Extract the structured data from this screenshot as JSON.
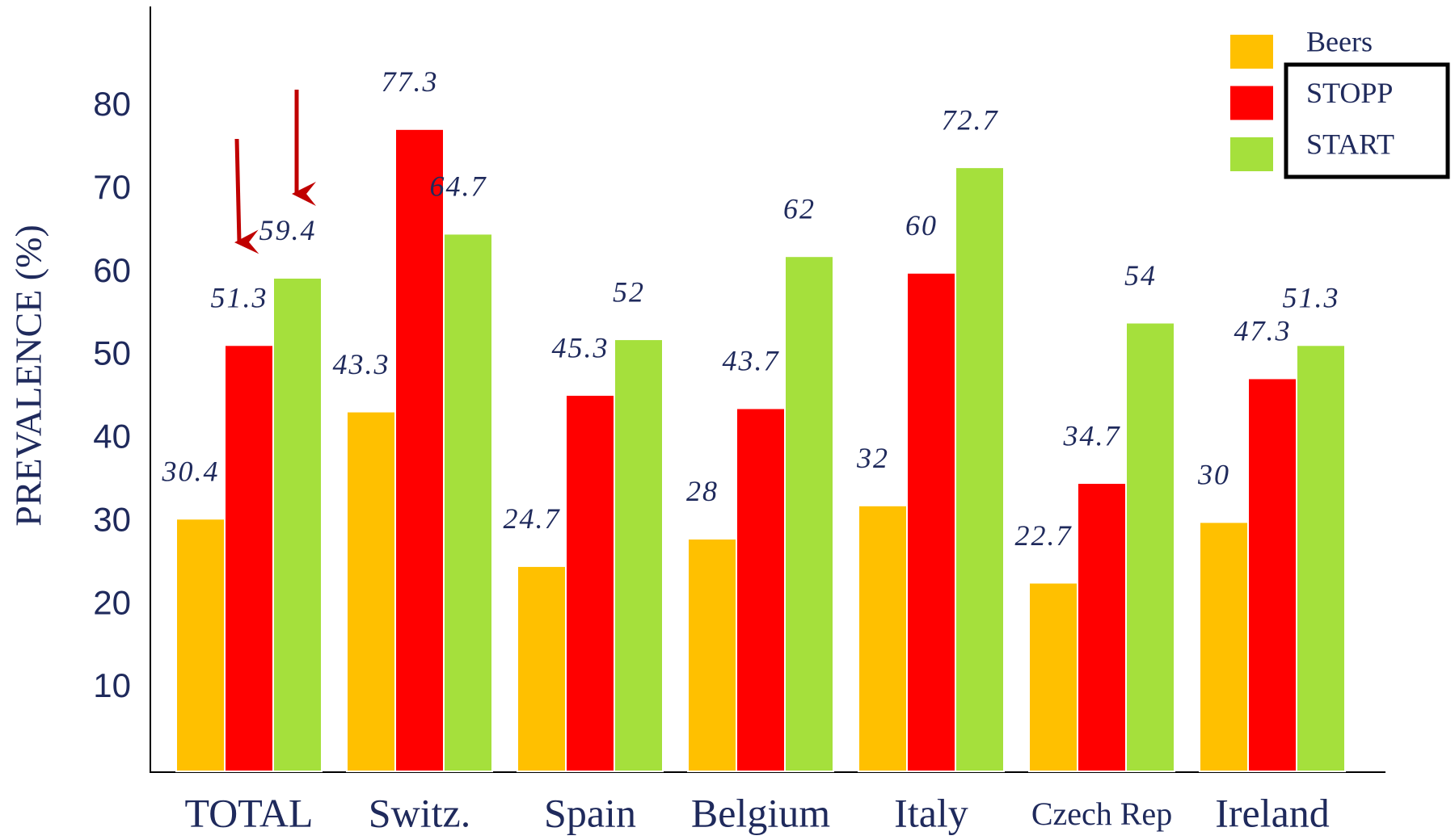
{
  "chart_data": {
    "type": "bar",
    "y_label": "PREVALENCE (%)",
    "categories": [
      "TOTAL",
      "Switz.",
      "Spain",
      "Belgium",
      "Italy",
      "Czech Rep",
      "Ireland"
    ],
    "series": [
      {
        "name": "Beers",
        "color": "#ffc000",
        "values": [
          30.4,
          43.3,
          24.7,
          28,
          32,
          22.7,
          30
        ]
      },
      {
        "name": "STOPP",
        "color": "#ff0000",
        "values": [
          51.3,
          77.3,
          45.3,
          43.7,
          60,
          34.7,
          47.3
        ]
      },
      {
        "name": "START",
        "color": "#a5e03c",
        "values": [
          59.4,
          64.7,
          52,
          62,
          72.7,
          54,
          51.3
        ]
      }
    ],
    "ylim": [
      0,
      92
    ],
    "yticks": [
      10,
      20,
      30,
      40,
      50,
      60,
      70,
      80
    ],
    "grid": false,
    "legend": "top-right"
  }
}
